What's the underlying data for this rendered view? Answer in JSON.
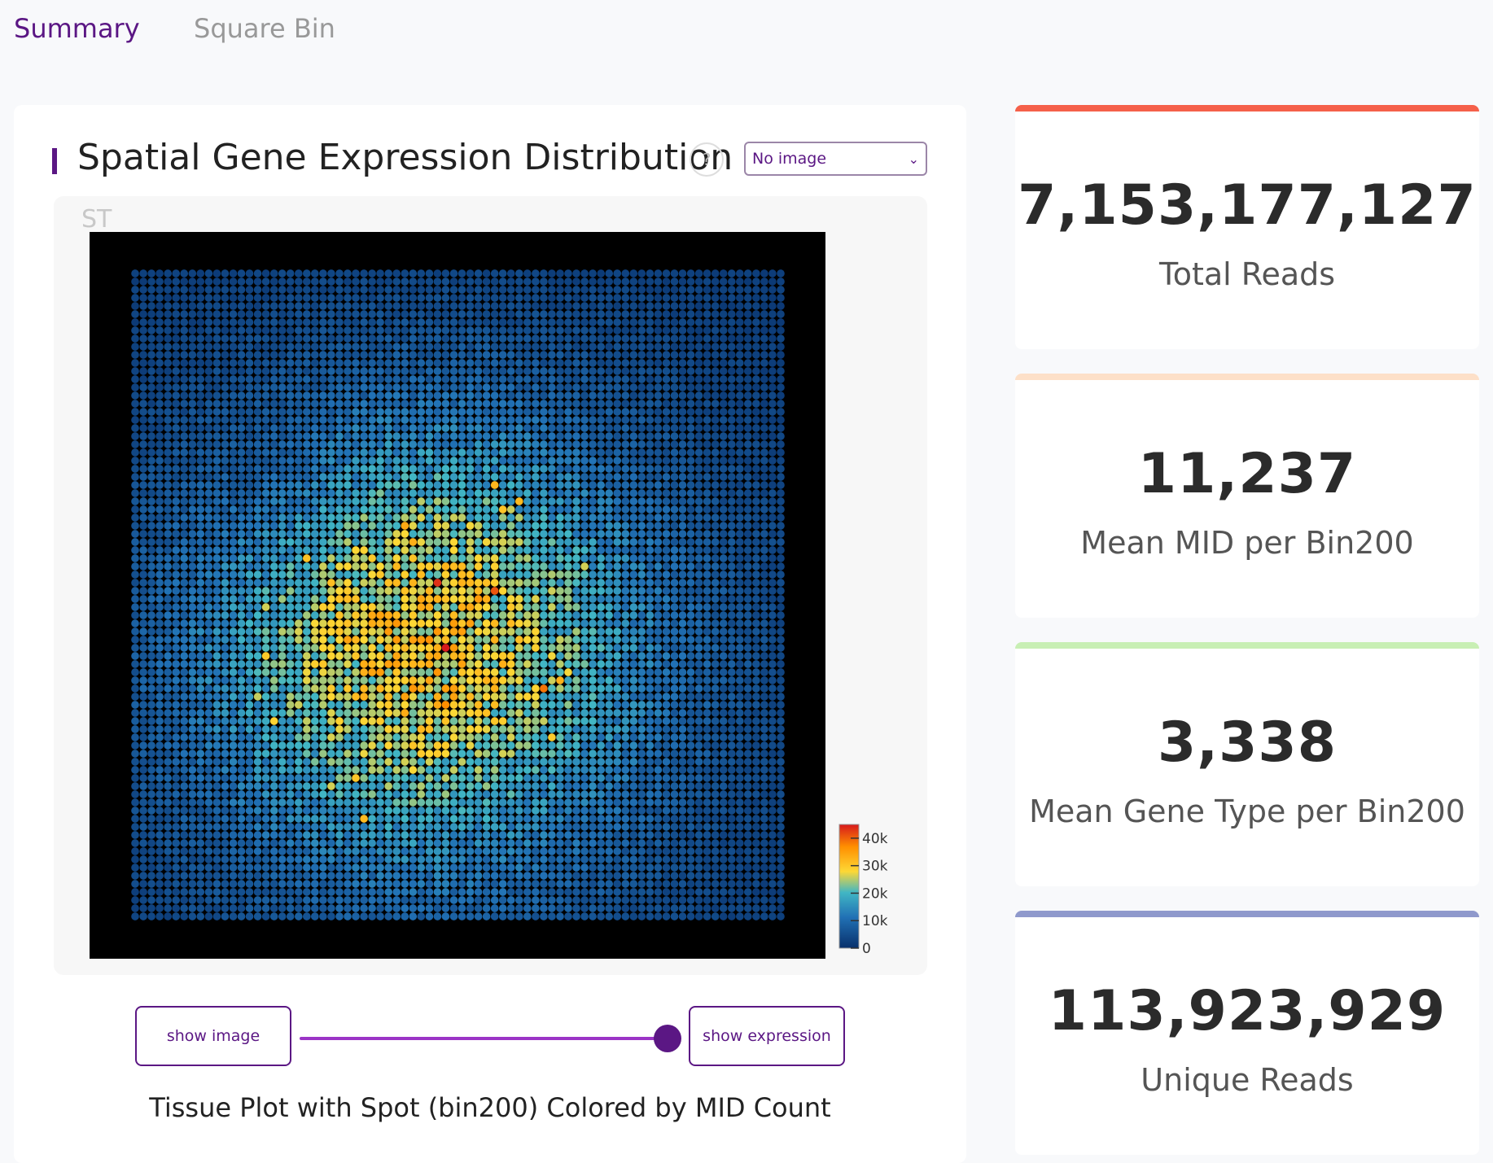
{
  "tabs": [
    {
      "label": "Summary",
      "active": true
    },
    {
      "label": "Square Bin",
      "active": false
    }
  ],
  "panel": {
    "title": "Spatial Gene Expression Distribution",
    "help_icon": "?",
    "image_select": {
      "selected": "No image"
    },
    "plot_label": "ST",
    "show_image_label": "show image",
    "show_expression_label": "show expression",
    "slider_value": 1,
    "caption": "Tissue Plot with Spot (bin200) Colored by MID Count"
  },
  "chart_data": {
    "type": "heatmap",
    "title": "Tissue Plot with Spot (bin200) Colored by MID Count",
    "colorbar": {
      "ticks": [
        "40k",
        "30k",
        "20k",
        "10k",
        "0"
      ],
      "tick_values": [
        40000,
        30000,
        20000,
        10000,
        0
      ],
      "range": [
        0,
        45000
      ],
      "colors": [
        "#08306b",
        "#2171b5",
        "#41b6c4",
        "#fdd835",
        "#ff8f00",
        "#d7191c"
      ]
    },
    "grid_dims": [
      80,
      80
    ],
    "value_description": "MID count per bin200 spot, peaking near 40k at tissue center, ~2k at edges"
  },
  "stats": [
    {
      "value": "7,153,177,127",
      "label": "Total Reads",
      "color": "#f5604a"
    },
    {
      "value": "11,237",
      "label": "Mean MID per Bin200",
      "color": "#fde0c8"
    },
    {
      "value": "3,338",
      "label": "Mean Gene Type per Bin200",
      "color": "#c8efb4"
    },
    {
      "value": "113,923,929",
      "label": "Unique Reads",
      "color": "#8f99cc"
    }
  ]
}
